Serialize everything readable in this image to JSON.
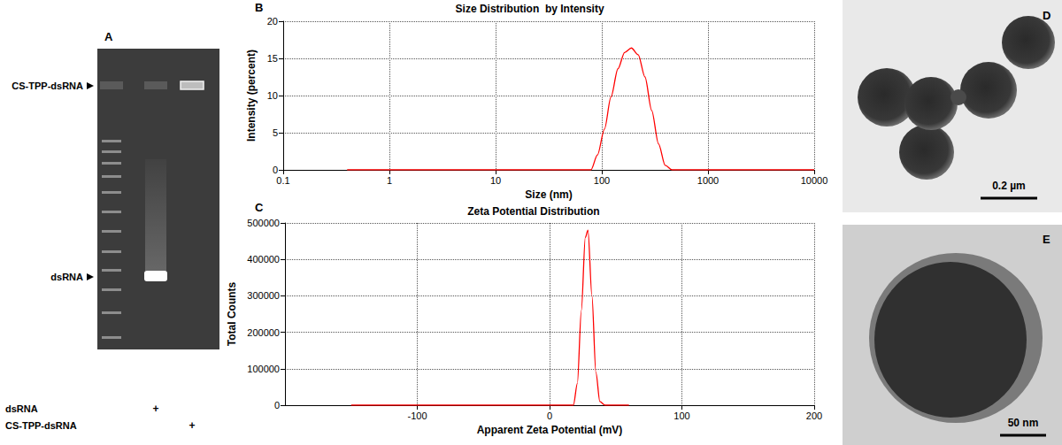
{
  "chart_data": [
    {
      "panel": "B",
      "type": "line",
      "title": "Size Distribution  by Intensity",
      "x_label": "Size (nm)",
      "y_label": "Intensity (percent)",
      "log": "x",
      "grid": true,
      "color": "#ff0000",
      "x": [
        0.4,
        1,
        10,
        50,
        68,
        79,
        91,
        106,
        122,
        142,
        164,
        190,
        220,
        255,
        295,
        342,
        396,
        459,
        531,
        1000,
        5000,
        10000
      ],
      "values": [
        0,
        0,
        0,
        0,
        0,
        0,
        2.0,
        5.5,
        9.8,
        13.6,
        15.8,
        16.4,
        15.5,
        12.5,
        8.0,
        3.5,
        0.6,
        0,
        0,
        0,
        0,
        0
      ],
      "xlim": [
        0.1,
        10000
      ],
      "xticks": [
        0.1,
        1,
        10,
        100,
        1000,
        10000
      ],
      "ylim": [
        0,
        20
      ],
      "yticks": [
        0,
        5,
        10,
        15,
        20
      ]
    },
    {
      "panel": "C",
      "type": "line",
      "title": "Zeta Potential Distribution",
      "x_label": "Apparent Zeta Potential (mV)",
      "y_label": "Total Counts",
      "grid": true,
      "color": "#ff0000",
      "x": [
        -150,
        -50,
        0,
        10,
        18,
        21,
        24,
        27,
        29,
        32,
        35,
        38,
        42,
        60
      ],
      "values": [
        0,
        0,
        0,
        0,
        0,
        60000,
        260000,
        460000,
        480000,
        300000,
        90000,
        10000,
        0,
        0
      ],
      "xlim": [
        -200,
        200
      ],
      "xticks": [
        -100,
        0,
        100,
        200
      ],
      "ylim": [
        0,
        500000
      ],
      "yticks": [
        0,
        100000,
        200000,
        300000,
        400000,
        500000
      ]
    }
  ],
  "gel": {
    "panel": "A",
    "band_labels": [
      "CS-TPP-dsRNA",
      "dsRNA"
    ],
    "lane_rows": [
      {
        "label": "dsRNA",
        "marks": [
          null,
          "+",
          null
        ]
      },
      {
        "label": "CS-TPP-dsRNA",
        "marks": [
          null,
          null,
          "+"
        ]
      }
    ]
  },
  "tem": [
    {
      "panel": "D",
      "scale_bar": "0.2 µm"
    },
    {
      "panel": "E",
      "scale_bar": "50 nm"
    }
  ]
}
